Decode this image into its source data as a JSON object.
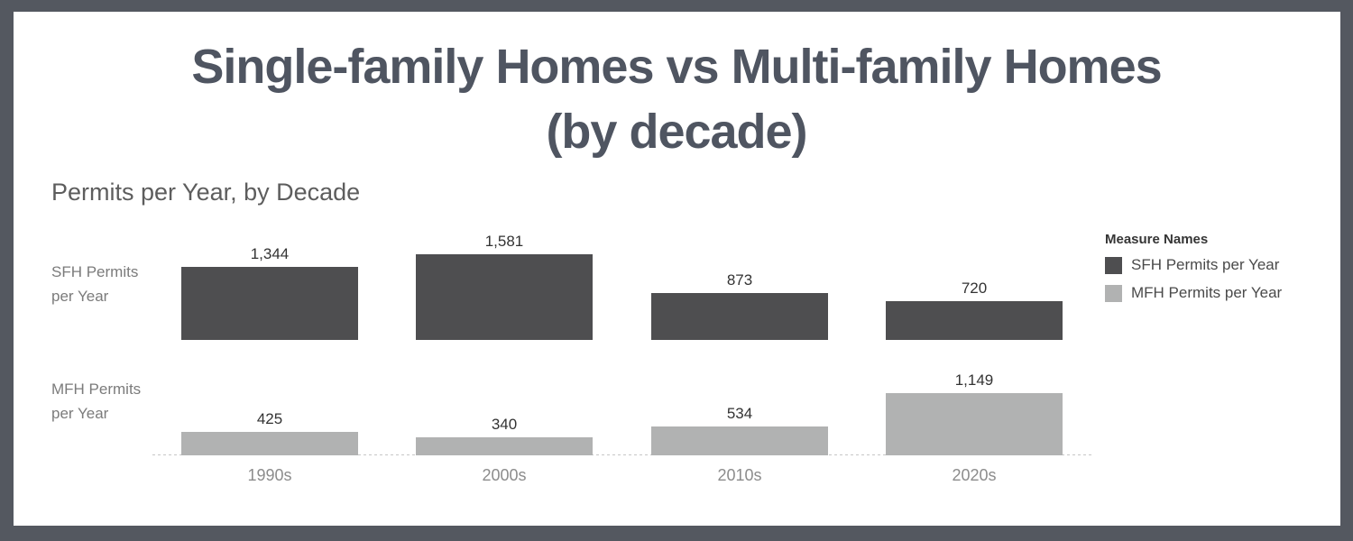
{
  "header": {
    "line1": "Single-family Homes vs Multi-family Homes",
    "line2": "(by decade)",
    "color": "#4f5561"
  },
  "frame": {
    "border_color": "#545860",
    "background": "#ffffff"
  },
  "chart_data": {
    "type": "bar",
    "title": "Permits per Year, by Decade",
    "xlabel": "",
    "ylabel": "",
    "grid": false,
    "value_labels": true,
    "axis_line_style": "dashed",
    "categories": [
      "1990s",
      "2000s",
      "2010s",
      "2020s"
    ],
    "series": [
      {
        "name": "SFH Permits per Year",
        "label_lines": [
          "SFH Permits",
          "per Year"
        ],
        "values": [
          1344,
          1581,
          873,
          720
        ],
        "display_values": [
          "1,344",
          "1,581",
          "873",
          "720"
        ],
        "color": "#4e4e50"
      },
      {
        "name": "MFH Permits per Year",
        "label_lines": [
          "MFH Permits",
          "per Year"
        ],
        "values": [
          425,
          340,
          534,
          1149
        ],
        "display_values": [
          "425",
          "340",
          "534",
          "1,149"
        ],
        "color": "#b1b2b2"
      }
    ],
    "legend": {
      "title": "Measure Names",
      "position": "right",
      "entries": [
        {
          "label": "SFH Permits per Year",
          "color": "#4e4e50"
        },
        {
          "label": "MFH Permits per Year",
          "color": "#b1b2b2"
        }
      ]
    },
    "value_label_color": "#333333",
    "tick_label_color": "#8c8c8c"
  }
}
